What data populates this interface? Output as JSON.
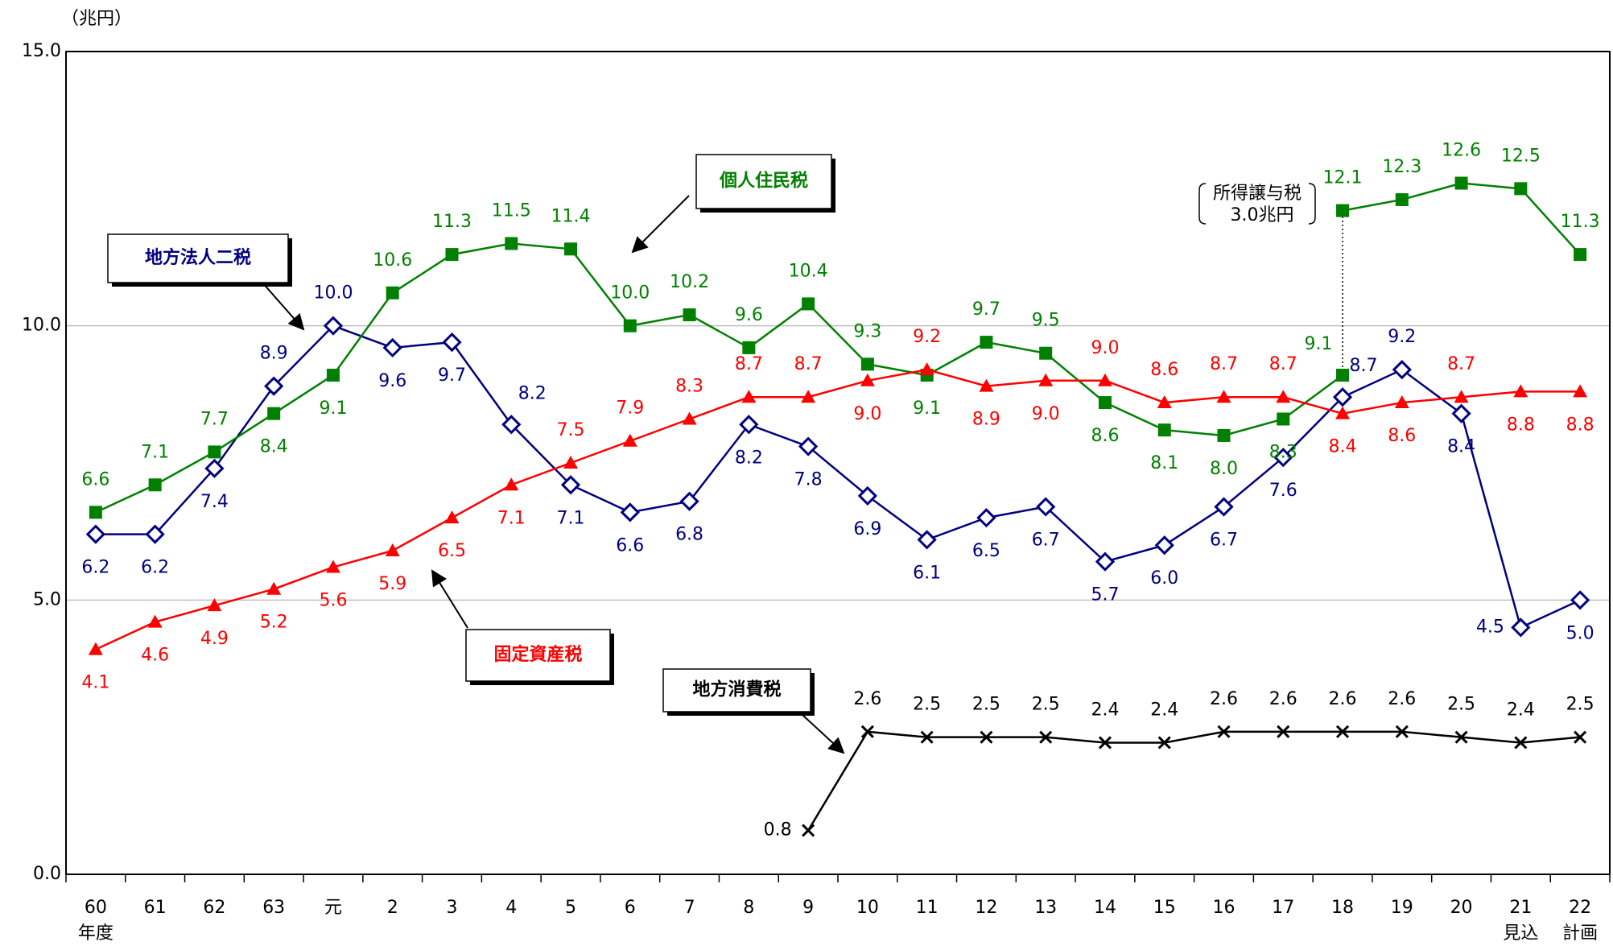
{
  "chart_data": {
    "type": "line",
    "y_unit": "（兆円）",
    "categories": [
      "60",
      "61",
      "62",
      "63",
      "元",
      "2",
      "3",
      "4",
      "5",
      "6",
      "7",
      "8",
      "9",
      "10",
      "11",
      "12",
      "13",
      "14",
      "15",
      "16",
      "17",
      "18",
      "19",
      "20",
      "21",
      "22"
    ],
    "category_notes": [
      "年度",
      null,
      null,
      null,
      null,
      null,
      null,
      null,
      null,
      null,
      null,
      null,
      null,
      null,
      null,
      null,
      null,
      null,
      null,
      null,
      null,
      null,
      null,
      null,
      "見込",
      "計画"
    ],
    "ylim": [
      0,
      15
    ],
    "yticks": [
      {
        "value": 0,
        "label": "0.0"
      },
      {
        "value": 5,
        "label": "5.0"
      },
      {
        "value": 10,
        "label": "10.0"
      },
      {
        "value": 15,
        "label": "15.0"
      }
    ],
    "grid": true,
    "annotation": [
      "所得譲与税",
      "3.0兆円"
    ],
    "series": [
      {
        "name": "地方法人二税",
        "color": "#000080",
        "marker": "diamond",
        "values": [
          6.2,
          6.2,
          7.4,
          8.9,
          10.0,
          9.6,
          9.7,
          8.2,
          7.1,
          6.6,
          6.8,
          8.2,
          7.8,
          6.9,
          6.1,
          6.5,
          6.7,
          5.7,
          6.0,
          6.7,
          7.6,
          8.7,
          9.2,
          8.4,
          4.5,
          5.0
        ],
        "value_labels": [
          "6.2",
          "6.2",
          "7.4",
          "8.9",
          "10.0",
          "9.6",
          "9.7",
          "8.2",
          "7.1",
          "6.6",
          "6.8",
          "8.2",
          "7.8",
          "6.9",
          "6.1",
          "6.5",
          "6.7",
          "5.7",
          "6.0",
          "6.7",
          "7.6",
          "8.7",
          "9.2",
          "8.4",
          "4.5",
          "5.0"
        ]
      },
      {
        "name": "個人住民税",
        "color": "#008000",
        "marker": "square",
        "values": [
          6.6,
          7.1,
          7.7,
          8.4,
          9.1,
          10.6,
          11.3,
          11.5,
          11.4,
          10.0,
          10.2,
          9.6,
          10.4,
          9.3,
          9.1,
          9.7,
          9.5,
          8.6,
          8.1,
          8.0,
          8.3,
          9.1,
          null,
          null,
          null,
          null
        ],
        "value_labels": [
          "6.6",
          "7.1",
          "7.7",
          "8.4",
          "9.1",
          "10.6",
          "11.3",
          "11.5",
          "11.4",
          "10.0",
          "10.2",
          "9.6",
          "10.4",
          "9.3",
          "9.1",
          "9.7",
          "9.5",
          "8.6",
          "8.1",
          "8.0",
          "8.3",
          "9.1",
          null,
          null,
          null,
          null
        ]
      },
      {
        "color": "#008000",
        "marker": "square",
        "values": [
          null,
          null,
          null,
          null,
          null,
          null,
          null,
          null,
          null,
          null,
          null,
          null,
          null,
          null,
          null,
          null,
          null,
          null,
          null,
          null,
          null,
          12.1,
          12.3,
          12.6,
          12.5,
          11.3
        ],
        "value_labels": [
          null,
          null,
          null,
          null,
          null,
          null,
          null,
          null,
          null,
          null,
          null,
          null,
          null,
          null,
          null,
          null,
          null,
          null,
          null,
          null,
          null,
          "12.1",
          "12.3",
          "12.6",
          "12.5",
          "11.3"
        ]
      },
      {
        "name": "固定資産税",
        "color": "#ff0000",
        "marker": "triangle",
        "values": [
          4.1,
          4.6,
          4.9,
          5.2,
          5.6,
          5.9,
          6.5,
          7.1,
          7.5,
          7.9,
          8.3,
          8.7,
          8.7,
          9.0,
          9.2,
          8.9,
          9.0,
          9.0,
          8.6,
          8.7,
          8.7,
          8.4,
          8.6,
          8.7,
          8.8,
          8.8
        ],
        "value_labels": [
          "4.1",
          "4.6",
          "4.9",
          "5.2",
          "5.6",
          "5.9",
          "6.5",
          "7.1",
          "7.5",
          "7.9",
          "8.3",
          "8.7",
          "8.7",
          "9.0",
          "9.2",
          "8.9",
          "9.0",
          "9.0",
          "8.6",
          "8.7",
          "8.7",
          "8.4",
          "8.6",
          "8.7",
          "8.8",
          "8.8"
        ]
      },
      {
        "name": "地方消費税",
        "color": "#000000",
        "marker": "cross",
        "values": [
          null,
          null,
          null,
          null,
          null,
          null,
          null,
          null,
          null,
          null,
          null,
          null,
          0.8,
          2.6,
          2.5,
          2.5,
          2.5,
          2.4,
          2.4,
          2.6,
          2.6,
          2.6,
          2.6,
          2.5,
          2.4,
          2.5
        ],
        "value_labels": [
          null,
          null,
          null,
          null,
          null,
          null,
          null,
          null,
          null,
          null,
          null,
          null,
          "0.8",
          "2.6",
          "2.5",
          "2.5",
          "2.5",
          "2.4",
          "2.4",
          "2.6",
          "2.6",
          "2.6",
          "2.6",
          "2.5",
          "2.4",
          "2.5"
        ]
      }
    ]
  }
}
